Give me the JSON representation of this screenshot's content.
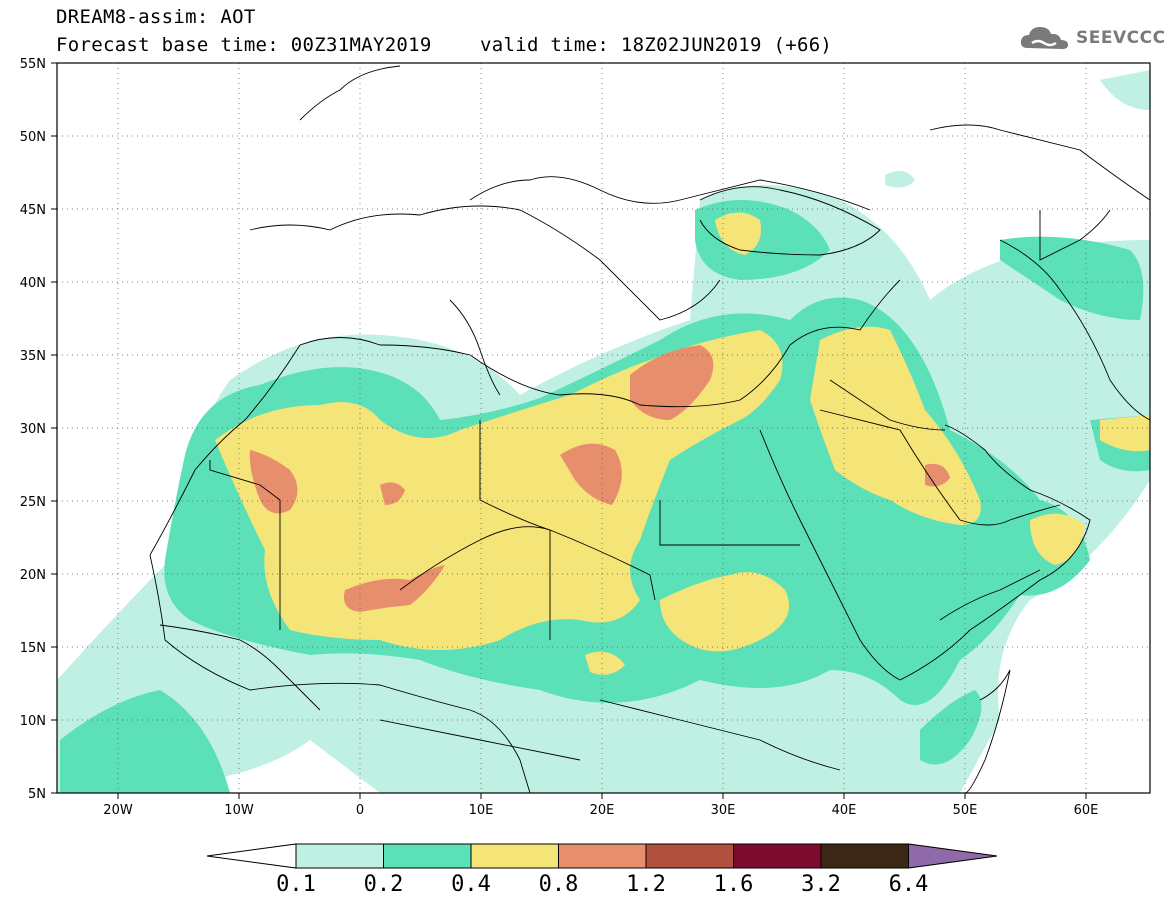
{
  "header": {
    "line1": "DREAM8-assim: AOT",
    "line2": "Forecast base time: 00Z31MAY2019",
    "line3": "valid time: 18Z02JUN2019 (+66)"
  },
  "logo": {
    "text": "SEEVCCC",
    "icon": "cloud-icon"
  },
  "map": {
    "lon_range": [
      -25,
      65
    ],
    "lat_range": [
      5,
      55
    ],
    "lat_ticks": [
      "5N",
      "10N",
      "15N",
      "20N",
      "25N",
      "30N",
      "35N",
      "40N",
      "45N",
      "50N",
      "55N"
    ],
    "lon_ticks": [
      "20W",
      "10W",
      "0",
      "10E",
      "20E",
      "30E",
      "40E",
      "50E",
      "60E"
    ],
    "grid": "dotted"
  },
  "colorbar": {
    "labels": [
      "0.1",
      "0.2",
      "0.4",
      "0.8",
      "1.2",
      "1.6",
      "3.2",
      "6.4"
    ],
    "colors": [
      "#ffffff",
      "#bff0e3",
      "#5ce0b8",
      "#f5e478",
      "#e78e6c",
      "#b3513f",
      "#7b0b2f",
      "#3a2716",
      "#8e6aa9"
    ]
  }
}
